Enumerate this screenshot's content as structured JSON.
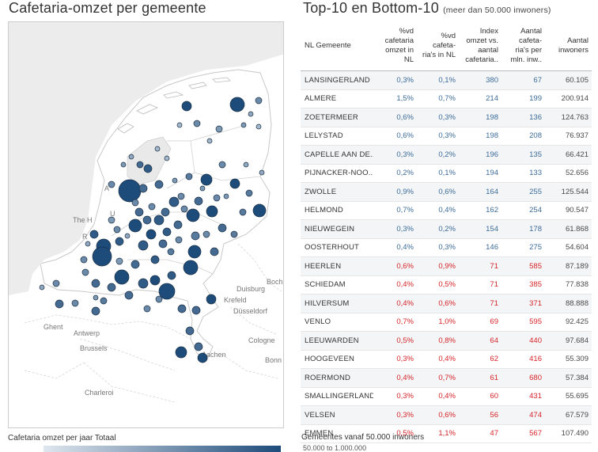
{
  "map_panel": {
    "title": "Cafetaria-omzet per gemeente",
    "legend_title": "Cafetaria omzet per jaar Totaal",
    "place_labels": [
      "The H",
      "R",
      "Antwerp",
      "Ghent",
      "Brussels",
      "Charleroi",
      "Duisburg",
      "Bochum",
      "Krefeld",
      "Düsseldorf",
      "Cologne",
      "Bonn",
      "Aachen",
      "U",
      "A"
    ],
    "colors": {
      "bubble_dark": "#1d4b7a",
      "bubble_light": "#dfe6ee"
    }
  },
  "table_panel": {
    "title": "Top-10 en Bottom-10",
    "subtitle": "(meer dan 50.000 inwoners)",
    "headers": {
      "name": "NL Gemeente",
      "c1": [
        "%vd",
        "cafetaria",
        "omzet in",
        "NL"
      ],
      "c2": [
        "%vd",
        "cafeta-",
        "ria's in NL"
      ],
      "c3": [
        "Index",
        "omzet vs.",
        "aantal",
        "cafetaria.."
      ],
      "c4": [
        "Aantal",
        "cafeta-",
        "ria's per",
        "mln. inw.."
      ],
      "c5": [
        "Aantal",
        "inwoners"
      ]
    },
    "top_rows": [
      {
        "name": "LANSINGERLAND",
        "omzet": "0,3%",
        "cafetarias": "0,1%",
        "index": "380",
        "per_mln": "67",
        "inwoners": "60.105"
      },
      {
        "name": "ALMERE",
        "omzet": "1,5%",
        "cafetarias": "0,7%",
        "index": "214",
        "per_mln": "199",
        "inwoners": "200.914"
      },
      {
        "name": "ZOETERMEER",
        "omzet": "0,6%",
        "cafetarias": "0,3%",
        "index": "198",
        "per_mln": "136",
        "inwoners": "124.763"
      },
      {
        "name": "LELYSTAD",
        "omzet": "0,6%",
        "cafetarias": "0,3%",
        "index": "198",
        "per_mln": "208",
        "inwoners": "76.937"
      },
      {
        "name": "CAPELLE AAN DE..",
        "omzet": "0,3%",
        "cafetarias": "0,2%",
        "index": "196",
        "per_mln": "135",
        "inwoners": "66.421"
      },
      {
        "name": "PIJNACKER-NOO..",
        "omzet": "0,2%",
        "cafetarias": "0,1%",
        "index": "194",
        "per_mln": "133",
        "inwoners": "52.656"
      },
      {
        "name": "ZWOLLE",
        "omzet": "0,9%",
        "cafetarias": "0,6%",
        "index": "164",
        "per_mln": "255",
        "inwoners": "125.544"
      },
      {
        "name": "HELMOND",
        "omzet": "0,7%",
        "cafetarias": "0,4%",
        "index": "162",
        "per_mln": "254",
        "inwoners": "90.547"
      },
      {
        "name": "NIEUWEGEIN",
        "omzet": "0,3%",
        "cafetarias": "0,2%",
        "index": "154",
        "per_mln": "178",
        "inwoners": "61.868"
      },
      {
        "name": "OOSTERHOUT",
        "omzet": "0,4%",
        "cafetarias": "0,3%",
        "index": "146",
        "per_mln": "275",
        "inwoners": "54.604"
      }
    ],
    "bottom_rows": [
      {
        "name": "HEERLEN",
        "omzet": "0,6%",
        "cafetarias": "0,9%",
        "index": "71",
        "per_mln": "585",
        "inwoners": "87.189"
      },
      {
        "name": "SCHIEDAM",
        "omzet": "0,4%",
        "cafetarias": "0,5%",
        "index": "71",
        "per_mln": "385",
        "inwoners": "77.838"
      },
      {
        "name": "HILVERSUM",
        "omzet": "0,4%",
        "cafetarias": "0,6%",
        "index": "71",
        "per_mln": "371",
        "inwoners": "88.888"
      },
      {
        "name": "VENLO",
        "omzet": "0,7%",
        "cafetarias": "1,0%",
        "index": "69",
        "per_mln": "595",
        "inwoners": "92.425"
      },
      {
        "name": "LEEUWARDEN",
        "omzet": "0,5%",
        "cafetarias": "0,8%",
        "index": "64",
        "per_mln": "440",
        "inwoners": "97.684"
      },
      {
        "name": "HOOGEVEEN",
        "omzet": "0,3%",
        "cafetarias": "0,4%",
        "index": "62",
        "per_mln": "416",
        "inwoners": "55.309"
      },
      {
        "name": "ROERMOND",
        "omzet": "0,4%",
        "cafetarias": "0,7%",
        "index": "61",
        "per_mln": "680",
        "inwoners": "57.384"
      },
      {
        "name": "SMALLINGERLAND",
        "omzet": "0,3%",
        "cafetarias": "0,4%",
        "index": "60",
        "per_mln": "431",
        "inwoners": "55.695"
      },
      {
        "name": "VELSEN",
        "omzet": "0,3%",
        "cafetarias": "0,6%",
        "index": "56",
        "per_mln": "474",
        "inwoners": "67.579"
      },
      {
        "name": "EMMEN",
        "omzet": "0,5%",
        "cafetarias": "1,1%",
        "index": "47",
        "per_mln": "567",
        "inwoners": "107.490"
      }
    ],
    "footer": "Gemeentes vanaf 50.000 inwoners",
    "footer_range": "50.000 to 1.000.000",
    "colors": {
      "top": "#3d6c99",
      "bottom": "#d6252a"
    }
  }
}
